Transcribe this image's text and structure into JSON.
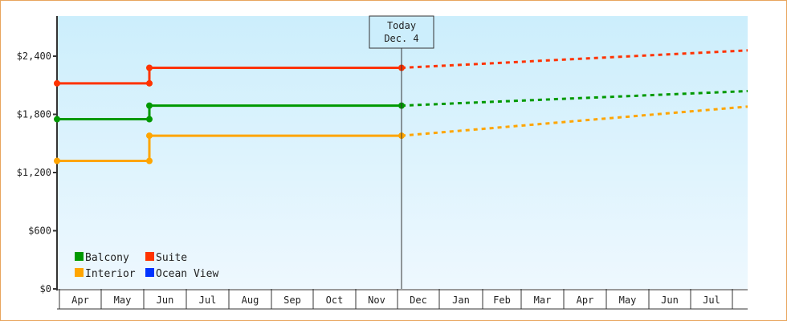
{
  "chart_data": {
    "type": "line",
    "title": "",
    "xlabel": "",
    "ylabel": "",
    "ylim": [
      0,
      2800
    ],
    "y_ticks": [
      "$0",
      "$600",
      "$1,200",
      "$1,800",
      "$2,400"
    ],
    "y_tick_values": [
      0,
      600,
      1200,
      1800,
      2400
    ],
    "categories": [
      "Apr",
      "May",
      "Jun",
      "Jul",
      "Aug",
      "Sep",
      "Oct",
      "Nov",
      "Dec",
      "Jan",
      "Feb",
      "Mar",
      "Apr",
      "May",
      "Jun",
      "Jul"
    ],
    "annotation": {
      "line1": "Today",
      "line2": "Dec. 4"
    },
    "legend": [
      {
        "name": "Balcony",
        "color": "#009900"
      },
      {
        "name": "Suite",
        "color": "#ff3300"
      },
      {
        "name": "Interior",
        "color": "#ffa500"
      },
      {
        "name": "Ocean View",
        "color": "#0033ff"
      }
    ],
    "series": [
      {
        "name": "Suite",
        "color": "#ff3300",
        "historical": [
          {
            "x": "Apr (start)",
            "y": 2120
          },
          {
            "x": "Jun (start)",
            "y": 2120
          },
          {
            "x": "Jun (start)",
            "y": 2280
          },
          {
            "x": "Dec. 4",
            "y": 2280
          }
        ],
        "forecast": [
          {
            "x": "Dec. 4",
            "y": 2280
          },
          {
            "x": "end of Jul",
            "y": 2460
          }
        ]
      },
      {
        "name": "Balcony",
        "color": "#009900",
        "historical": [
          {
            "x": "Apr (start)",
            "y": 1750
          },
          {
            "x": "Jun (start)",
            "y": 1750
          },
          {
            "x": "Jun (start)",
            "y": 1890
          },
          {
            "x": "Dec. 4",
            "y": 1890
          }
        ],
        "forecast": [
          {
            "x": "Dec. 4",
            "y": 1890
          },
          {
            "x": "end of Jul",
            "y": 2040
          }
        ]
      },
      {
        "name": "Interior",
        "color": "#ffa500",
        "historical": [
          {
            "x": "Apr (start)",
            "y": 1320
          },
          {
            "x": "Jun (start)",
            "y": 1320
          },
          {
            "x": "Jun (start)",
            "y": 1580
          },
          {
            "x": "Dec. 4",
            "y": 1580
          }
        ],
        "forecast": [
          {
            "x": "Dec. 4",
            "y": 1580
          },
          {
            "x": "end of Jul",
            "y": 1880
          }
        ]
      },
      {
        "name": "Ocean View",
        "color": "#0033ff",
        "historical": [],
        "forecast": []
      }
    ],
    "grid": false,
    "legend_position": "bottom-left inside plot"
  }
}
